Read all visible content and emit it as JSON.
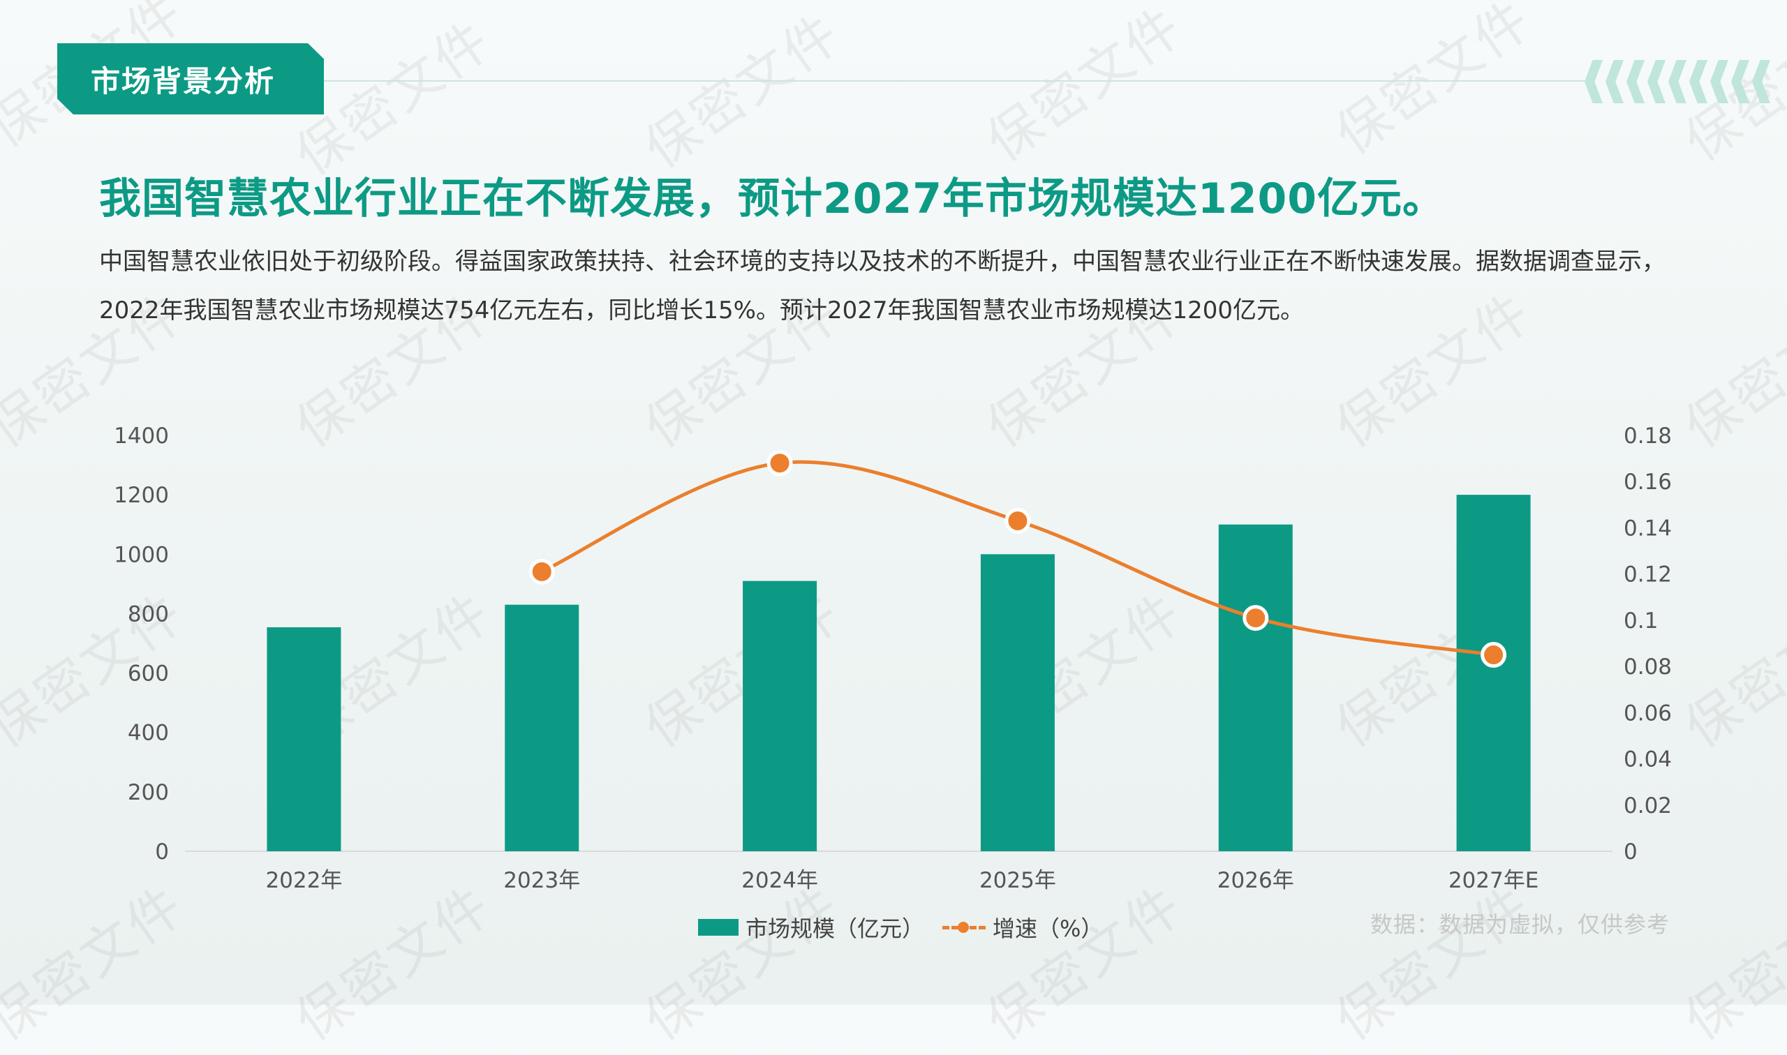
{
  "section_tag": "市场背景分析",
  "headline": "我国智慧农业行业正在不断发展，预计2027年市场规模达1200亿元。",
  "body_text": "中国智慧农业依旧处于初级阶段。得益国家政策扶持、社会环境的支持以及技术的不断提升，中国智慧农业行业正在不断快速发展。据数据调查显示，2022年我国智慧农业市场规模达754亿元左右，同比增长15%。预计2027年我国智慧农业市场规模达1200亿元。",
  "watermark": "保密文件",
  "source_note": "数据：数据为虚拟，仅供参考",
  "colors": {
    "accent": "#0d9a85",
    "line": "#eb7f2d",
    "deco": "#bfe5dc"
  },
  "chart_data": {
    "type": "bar",
    "categories": [
      "2022年",
      "2023年",
      "2024年",
      "2025年",
      "2026年",
      "2027年E"
    ],
    "series": [
      {
        "name": "市场规模（亿元）",
        "type": "bar",
        "axis": "left",
        "values": [
          754,
          830,
          910,
          1000,
          1100,
          1200
        ]
      },
      {
        "name": "增速（%）",
        "type": "line",
        "axis": "right",
        "smooth": true,
        "values": [
          null,
          0.121,
          0.168,
          0.143,
          0.101,
          0.085
        ]
      }
    ],
    "left_axis": {
      "ylim": [
        0,
        1400
      ],
      "ticks": [
        "0",
        "200",
        "400",
        "600",
        "800",
        "1000",
        "1200",
        "1400"
      ]
    },
    "right_axis": {
      "ylim": [
        0,
        0.18
      ],
      "ticks": [
        "0",
        "0.02",
        "0.04",
        "0.06",
        "0.08",
        "0.1",
        "0.12",
        "0.14",
        "0.16",
        "0.18"
      ]
    },
    "grid": false,
    "legend": "bottom-center"
  }
}
